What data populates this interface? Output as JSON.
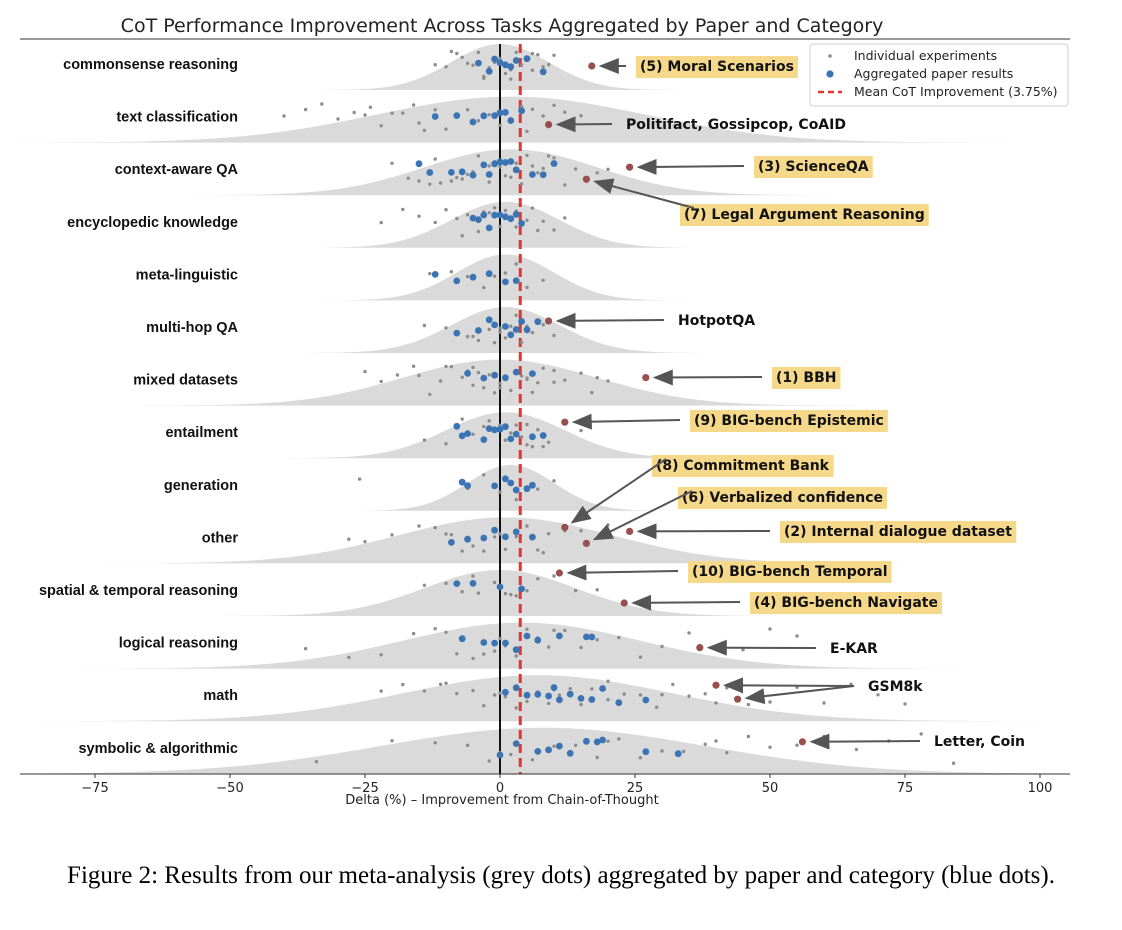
{
  "caption": "Figure 2: Results from our meta-analysis (grey dots) aggregated by paper and category (blue dots).",
  "colors": {
    "grey_dot": "#8c8c8c",
    "blue_dot": "#3a74b4",
    "highlight_dot": "#9a4f4f",
    "mean_line": "#e03530",
    "zero_line": "#111111",
    "density": "#d3d3d3",
    "label_bg": "#f5d88a",
    "arrow": "#555555"
  },
  "chart_data": {
    "type": "scatter",
    "title": "CoT Performance Improvement Across Tasks Aggregated by Paper and Category",
    "xlabel": "Delta (%) – Improvement from Chain-of-Thought",
    "xlim": [
      -90,
      100
    ],
    "xticks": [
      -75,
      -50,
      -25,
      0,
      25,
      50,
      75,
      100
    ],
    "xtick_labels": [
      "−75",
      "−50",
      "−25",
      "0",
      "25",
      "50",
      "75",
      "100"
    ],
    "mean_line": 3.75,
    "legend": {
      "position": "top-right",
      "entries": [
        "Individual experiments",
        "Aggregated paper results",
        "Mean CoT Improvement (3.75%)"
      ]
    },
    "categories": [
      {
        "name": "commonsense reasoning",
        "density": {
          "center": 0,
          "sd": 9
        },
        "individual": [
          -12,
          -10,
          -8,
          -7,
          -6,
          -5,
          -4,
          -3,
          -2,
          -1,
          0,
          1,
          2,
          3,
          4,
          5,
          6,
          7,
          8,
          9,
          10,
          -9,
          -3,
          2,
          6
        ],
        "aggregated": [
          -4,
          -2,
          -1,
          0,
          1,
          2,
          3,
          5,
          8
        ],
        "highlights": [
          {
            "x": 17,
            "label": "(5) Moral Scenarios",
            "highlight": true
          }
        ]
      },
      {
        "name": "text classification",
        "density": {
          "center": 2,
          "sd": 25
        },
        "individual": [
          -40,
          -36,
          -30,
          -27,
          -24,
          -22,
          -20,
          -18,
          -16,
          -14,
          -12,
          -10,
          -8,
          -6,
          -4,
          -2,
          0,
          2,
          4,
          6,
          8,
          10,
          -33,
          -25,
          -15,
          -5,
          5,
          12,
          15
        ],
        "aggregated": [
          -12,
          -8,
          -5,
          -3,
          -1,
          0,
          1,
          2,
          4
        ],
        "highlights": [
          {
            "x": 9,
            "label": "Politifact, Gossipcop, CoAID",
            "highlight": false
          }
        ]
      },
      {
        "name": "context-aware QA",
        "density": {
          "center": 2,
          "sd": 16
        },
        "individual": [
          -20,
          -17,
          -15,
          -13,
          -11,
          -9,
          -8,
          -6,
          -5,
          -4,
          -3,
          -2,
          -1,
          0,
          1,
          2,
          3,
          4,
          5,
          6,
          7,
          8,
          10,
          12,
          14,
          16,
          18,
          20,
          -12,
          -7,
          -2,
          3,
          9
        ],
        "aggregated": [
          -15,
          -13,
          -9,
          -7,
          -5,
          -3,
          -2,
          -1,
          0,
          1,
          2,
          3,
          6,
          8,
          10
        ],
        "highlights": [
          {
            "x": 24,
            "label": "(3) ScienceQA",
            "highlight": true
          },
          {
            "x": 16,
            "label": "(7) Legal Argument Reasoning",
            "highlight": true
          }
        ]
      },
      {
        "name": "encyclopedic knowledge",
        "density": {
          "center": 1,
          "sd": 10
        },
        "individual": [
          -22,
          -18,
          -15,
          -12,
          -10,
          -8,
          -6,
          -5,
          -4,
          -3,
          -2,
          -1,
          0,
          1,
          2,
          3,
          4,
          5,
          6,
          7,
          8,
          10,
          12,
          -7,
          -2,
          3
        ],
        "aggregated": [
          -5,
          -4,
          -3,
          -2,
          -1,
          0,
          1,
          2,
          3,
          4
        ],
        "highlights": []
      },
      {
        "name": "meta-linguistic",
        "density": {
          "center": 1,
          "sd": 9
        },
        "individual": [
          -13,
          -9,
          -6,
          -3,
          -1,
          1,
          3,
          5,
          8
        ],
        "aggregated": [
          -12,
          -8,
          -5,
          -2,
          1,
          3
        ],
        "highlights": []
      },
      {
        "name": "multi-hop QA",
        "density": {
          "center": 1,
          "sd": 10
        },
        "individual": [
          -14,
          -10,
          -8,
          -6,
          -4,
          -2,
          -1,
          0,
          1,
          2,
          3,
          4,
          5,
          6,
          8,
          10,
          -5,
          0,
          5
        ],
        "aggregated": [
          -8,
          -4,
          -2,
          -1,
          1,
          2,
          3,
          4,
          5,
          7
        ],
        "highlights": [
          {
            "x": 9,
            "label": "HotpotQA",
            "highlight": false
          }
        ]
      },
      {
        "name": "mixed datasets",
        "density": {
          "center": 0,
          "sd": 18
        },
        "individual": [
          -25,
          -22,
          -19,
          -16,
          -13,
          -11,
          -9,
          -7,
          -6,
          -5,
          -4,
          -3,
          -2,
          -1,
          0,
          1,
          2,
          3,
          4,
          5,
          6,
          7,
          8,
          10,
          12,
          15,
          18,
          20,
          -15,
          -10,
          -5,
          0,
          5,
          10,
          17
        ],
        "aggregated": [
          -6,
          -3,
          -1,
          1,
          3,
          6
        ],
        "highlights": [
          {
            "x": 27,
            "label": "(1) BBH",
            "highlight": true
          }
        ]
      },
      {
        "name": "entailment",
        "density": {
          "center": 1,
          "sd": 11
        },
        "individual": [
          -14,
          -10,
          -7,
          -5,
          -3,
          -1,
          0,
          1,
          2,
          3,
          4,
          5,
          6,
          7,
          8,
          9,
          15,
          -2,
          5
        ],
        "aggregated": [
          -8,
          -7,
          -6,
          -3,
          -2,
          -1,
          0,
          1,
          2,
          3,
          6,
          8
        ],
        "highlights": [
          {
            "x": 12,
            "label": "(9) BIG-bench Epistemic",
            "highlight": true
          }
        ]
      },
      {
        "name": "generation",
        "density": {
          "center": 2,
          "sd": 8
        },
        "individual": [
          -26,
          -6,
          -3,
          0,
          3,
          7,
          10
        ],
        "aggregated": [
          -7,
          -6,
          -1,
          1,
          2,
          3,
          5,
          6
        ],
        "highlights": []
      },
      {
        "name": "other",
        "density": {
          "center": 1,
          "sd": 20
        },
        "individual": [
          -28,
          -25,
          -20,
          -15,
          -12,
          -9,
          -7,
          -5,
          -3,
          -1,
          1,
          3,
          5,
          7,
          9,
          12,
          15,
          20,
          -10,
          0,
          8
        ],
        "aggregated": [
          -9,
          -6,
          -3,
          -1,
          1,
          3,
          6
        ],
        "highlights": [
          {
            "x": 12,
            "label": "(8) Commitment Bank",
            "highlight": true
          },
          {
            "x": 16,
            "label": "(6) Verbalized confidence",
            "highlight": true
          },
          {
            "x": 24,
            "label": "(2) Internal dialogue dataset",
            "highlight": true
          }
        ]
      },
      {
        "name": "spatial & temporal reasoning",
        "density": {
          "center": 0,
          "sd": 14
        },
        "individual": [
          -14,
          -10,
          -7,
          -4,
          -1,
          1,
          3,
          5,
          7,
          10,
          14,
          18,
          -5,
          2
        ],
        "aggregated": [
          -8,
          -5,
          0,
          4
        ],
        "highlights": [
          {
            "x": 11,
            "label": "(10) BIG-bench Temporal",
            "highlight": true
          },
          {
            "x": 23,
            "label": "(4) BIG-bench Navigate",
            "highlight": true
          }
        ]
      },
      {
        "name": "logical reasoning",
        "density": {
          "center": 4,
          "sd": 22
        },
        "individual": [
          -36,
          -28,
          -22,
          -16,
          -12,
          -8,
          -5,
          -3,
          -1,
          1,
          3,
          5,
          7,
          9,
          12,
          15,
          18,
          22,
          26,
          30,
          35,
          40,
          45,
          50,
          55,
          -10,
          0,
          10
        ],
        "aggregated": [
          -7,
          -3,
          -1,
          1,
          3,
          5,
          7,
          11,
          16,
          17
        ],
        "highlights": [
          {
            "x": 37,
            "label": "E-KAR",
            "highlight": false
          }
        ]
      },
      {
        "name": "math",
        "density": {
          "center": 7,
          "sd": 25
        },
        "individual": [
          -22,
          -18,
          -14,
          -11,
          -8,
          -5,
          -3,
          -1,
          1,
          3,
          5,
          7,
          9,
          11,
          13,
          15,
          17,
          20,
          23,
          26,
          29,
          32,
          35,
          38,
          42,
          46,
          50,
          55,
          60,
          65,
          70,
          75,
          -10,
          0,
          10,
          20,
          30,
          40
        ],
        "aggregated": [
          1,
          3,
          5,
          7,
          9,
          10,
          11,
          13,
          15,
          17,
          19,
          22,
          27
        ],
        "highlights": [
          {
            "x": 40,
            "label": "GSM8k",
            "highlight": false
          },
          {
            "x": 44,
            "label": "",
            "highlight": false
          }
        ]
      },
      {
        "name": "symbolic & algorithmic",
        "density": {
          "center": 8,
          "sd": 30
        },
        "individual": [
          -34,
          -20,
          -12,
          -6,
          -2,
          2,
          6,
          10,
          14,
          18,
          22,
          26,
          30,
          34,
          38,
          42,
          46,
          50,
          55,
          60,
          66,
          72,
          78,
          84,
          0,
          20,
          40
        ],
        "aggregated": [
          0,
          3,
          7,
          9,
          11,
          13,
          16,
          18,
          19,
          27,
          33
        ],
        "highlights": [
          {
            "x": 56,
            "label": "Letter, Coin",
            "highlight": false
          }
        ]
      }
    ]
  }
}
